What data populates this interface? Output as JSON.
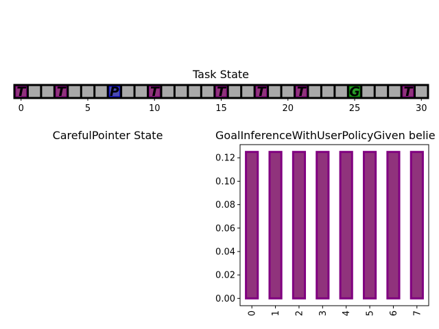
{
  "chart_data": [
    {
      "type": "grid-strip",
      "title": "Task State",
      "n_cells": 31,
      "xlim": [
        -0.5,
        30.5
      ],
      "xticks": [
        0,
        5,
        10,
        15,
        20,
        25,
        30
      ],
      "cell_color": "#a9a9a9",
      "border_color": "#000000",
      "cells": [
        {
          "index": 0,
          "letter": "T",
          "fill": "#90337c",
          "edge": "#800080"
        },
        {
          "index": 3,
          "letter": "T",
          "fill": "#90337c",
          "edge": "#800080"
        },
        {
          "index": 7,
          "letter": "P",
          "fill": "#4a4ab0",
          "edge": "#0000cc"
        },
        {
          "index": 10,
          "letter": "T",
          "fill": "#90337c",
          "edge": "#800080"
        },
        {
          "index": 15,
          "letter": "T",
          "fill": "#90337c",
          "edge": "#800080"
        },
        {
          "index": 18,
          "letter": "T",
          "fill": "#90337c",
          "edge": "#800080"
        },
        {
          "index": 21,
          "letter": "T",
          "fill": "#90337c",
          "edge": "#800080"
        },
        {
          "index": 25,
          "letter": "G",
          "fill": "#2a9a2a",
          "edge": "#007a00"
        },
        {
          "index": 29,
          "letter": "T",
          "fill": "#90337c",
          "edge": "#800080"
        }
      ]
    },
    {
      "type": "empty",
      "title": "CarefulPointer State"
    },
    {
      "type": "bar",
      "title": "GoalInferenceWithUserPolicyGiven belie",
      "categories": [
        "0",
        "1",
        "2",
        "3",
        "4",
        "5",
        "6",
        "7"
      ],
      "values": [
        0.125,
        0.125,
        0.125,
        0.125,
        0.125,
        0.125,
        0.125,
        0.125
      ],
      "ylim": [
        -0.00625,
        0.13125
      ],
      "yticks": [
        "0.00",
        "0.02",
        "0.04",
        "0.06",
        "0.08",
        "0.10",
        "0.12"
      ],
      "bar_color": "#90337c",
      "edge_color": "#800080"
    }
  ]
}
